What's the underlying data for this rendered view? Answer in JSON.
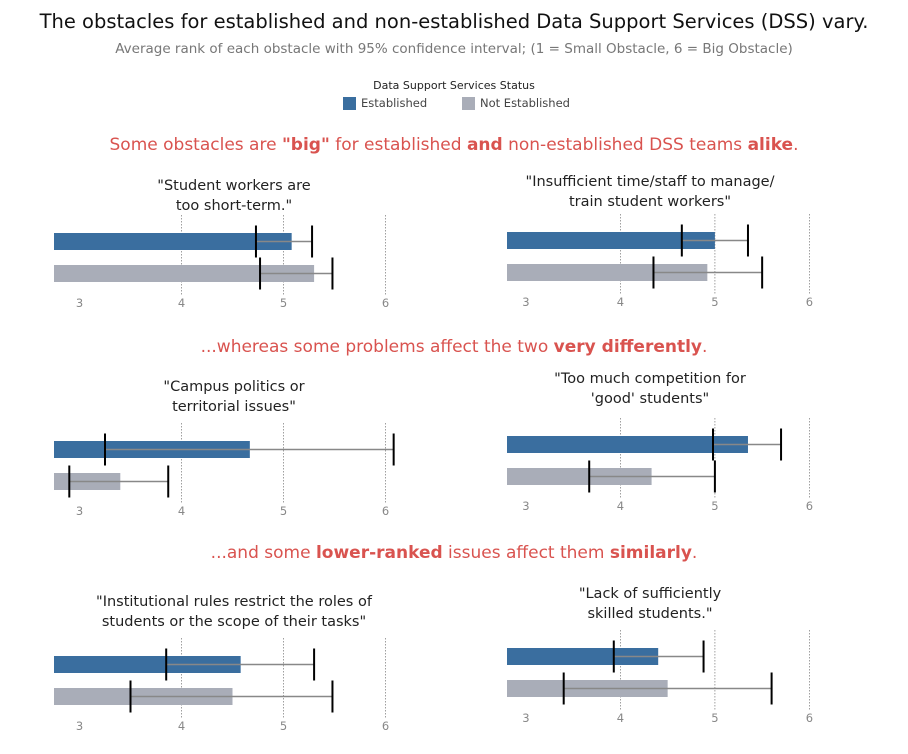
{
  "title": "The obstacles for established and non-established Data Support Services (DSS) vary.",
  "subtitle": "Average rank of each obstacle with 95% confidence interval; (1 = Small Obstacle, 6 = Big Obstacle)",
  "legend": {
    "title": "Data Support Services Status",
    "items": [
      {
        "label": "Established",
        "color": "#3a6e9f"
      },
      {
        "label": "Not Established",
        "color": "#a9adb8"
      }
    ]
  },
  "sections": [
    {
      "parts": [
        {
          "text": "Some obstacles are ",
          "bold": false
        },
        {
          "text": "\"big\"",
          "bold": true
        },
        {
          "text": " for established ",
          "bold": false
        },
        {
          "text": "and",
          "bold": true
        },
        {
          "text": " non-established DSS teams ",
          "bold": false
        },
        {
          "text": "alike",
          "bold": true
        },
        {
          "text": ".",
          "bold": false
        }
      ]
    },
    {
      "parts": [
        {
          "text": "...whereas some problems affect the two ",
          "bold": false
        },
        {
          "text": "very differently",
          "bold": true
        },
        {
          "text": ".",
          "bold": false
        }
      ]
    },
    {
      "parts": [
        {
          "text": "...and some ",
          "bold": false
        },
        {
          "text": "lower-ranked",
          "bold": true
        },
        {
          "text": " issues affect them ",
          "bold": false
        },
        {
          "text": "similarly",
          "bold": true
        },
        {
          "text": ".",
          "bold": false
        }
      ]
    }
  ],
  "chart_data": [
    {
      "type": "bar",
      "title": "\"Student workers are\ntoo short-term.\"",
      "xticks": [
        3,
        4,
        5,
        6
      ],
      "xlim": [
        2.75,
        6.1
      ],
      "series": [
        {
          "name": "Established",
          "value": 5.08,
          "ci": [
            4.73,
            5.28
          ]
        },
        {
          "name": "Not Established",
          "value": 5.3,
          "ci": [
            4.77,
            5.48
          ]
        }
      ]
    },
    {
      "type": "bar",
      "title": "\"Insufficient time/staff to manage/\ntrain student workers\"",
      "xticks": [
        3,
        4,
        5,
        6
      ],
      "xlim": [
        2.8,
        6.0
      ],
      "series": [
        {
          "name": "Established",
          "value": 5.0,
          "ci": [
            4.65,
            5.35
          ]
        },
        {
          "name": "Not Established",
          "value": 4.92,
          "ci": [
            4.35,
            5.5
          ]
        }
      ]
    },
    {
      "type": "bar",
      "title": "\"Campus politics or\nterritorial issues\"",
      "xticks": [
        3,
        4,
        5,
        6
      ],
      "xlim": [
        2.75,
        6.1
      ],
      "series": [
        {
          "name": "Established",
          "value": 4.67,
          "ci": [
            3.25,
            6.08
          ]
        },
        {
          "name": "Not Established",
          "value": 3.4,
          "ci": [
            2.9,
            3.87
          ]
        }
      ]
    },
    {
      "type": "bar",
      "title": "\"Too much competition for\n'good' students\"",
      "xticks": [
        3,
        4,
        5,
        6
      ],
      "xlim": [
        2.8,
        6.0
      ],
      "series": [
        {
          "name": "Established",
          "value": 5.35,
          "ci": [
            4.98,
            5.7
          ]
        },
        {
          "name": "Not Established",
          "value": 4.33,
          "ci": [
            3.67,
            5.0
          ]
        }
      ]
    },
    {
      "type": "bar",
      "title": "\"Institutional rules restrict the roles of\nstudents or the scope of their tasks\"",
      "xticks": [
        3,
        4,
        5,
        6
      ],
      "xlim": [
        2.75,
        6.1
      ],
      "series": [
        {
          "name": "Established",
          "value": 4.58,
          "ci": [
            3.85,
            5.3
          ]
        },
        {
          "name": "Not Established",
          "value": 4.5,
          "ci": [
            3.5,
            5.48
          ]
        }
      ]
    },
    {
      "type": "bar",
      "title": "\"Lack of sufficiently\nskilled students.\"",
      "xticks": [
        3,
        4,
        5,
        6
      ],
      "xlim": [
        2.8,
        6.0
      ],
      "series": [
        {
          "name": "Established",
          "value": 4.4,
          "ci": [
            3.93,
            4.88
          ]
        },
        {
          "name": "Not Established",
          "value": 4.5,
          "ci": [
            3.4,
            5.6
          ]
        }
      ]
    }
  ]
}
